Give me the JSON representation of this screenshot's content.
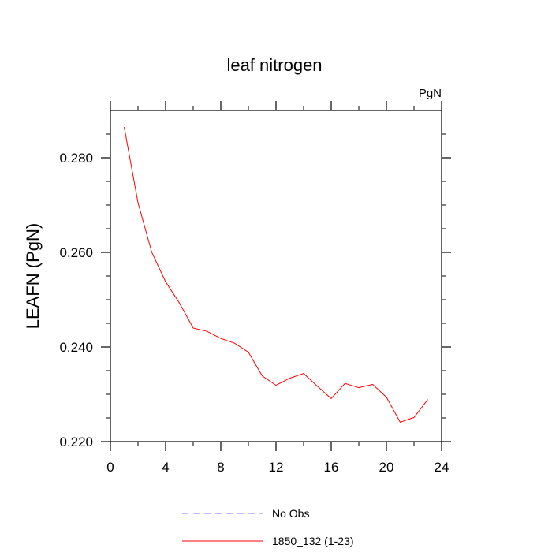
{
  "chart_data": {
    "type": "line",
    "title": "leaf nitrogen",
    "units_label": "PgN",
    "ylabel": "LEAFN  (PgN)",
    "xlabel": "",
    "xlim": [
      0,
      24
    ],
    "ylim": [
      0.22,
      0.29
    ],
    "x_ticks": [
      0,
      4,
      8,
      12,
      16,
      20,
      24
    ],
    "x_tick_labels": [
      "0",
      "4",
      "8",
      "12",
      "16",
      "20",
      "24"
    ],
    "y_ticks": [
      0.22,
      0.24,
      0.26,
      0.28
    ],
    "y_tick_labels": [
      "0.220",
      "0.240",
      "0.260",
      "0.280"
    ],
    "series": [
      {
        "name": "1850_132 (1-23)",
        "color": "#ff0000",
        "style": "solid",
        "x": [
          1,
          2,
          3,
          4,
          5,
          6,
          7,
          8,
          9,
          10,
          11,
          12,
          13,
          14,
          15,
          16,
          17,
          18,
          19,
          20,
          21,
          22,
          23
        ],
        "y": [
          0.2865,
          0.2705,
          0.26,
          0.2538,
          0.2493,
          0.244,
          0.2433,
          0.2418,
          0.2408,
          0.2389,
          0.2339,
          0.2319,
          0.2334,
          0.2344,
          0.2317,
          0.2291,
          0.2323,
          0.2314,
          0.2321,
          0.2294,
          0.2241,
          0.2251,
          0.2289
        ]
      }
    ],
    "legend": [
      {
        "label": "No Obs",
        "color": "#8080ff",
        "style": "dashed"
      },
      {
        "label": "1850_132 (1-23)",
        "color": "#ff0000",
        "style": "solid"
      }
    ],
    "legend_position": "bottom",
    "grid": false
  }
}
